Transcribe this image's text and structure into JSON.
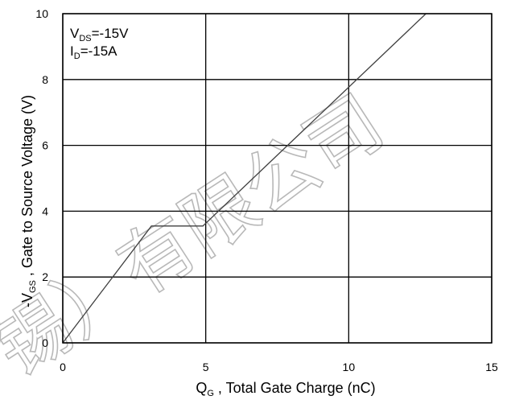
{
  "chart_data": {
    "type": "line",
    "title": "",
    "xlabel": {
      "main": "Q",
      "sub": "G",
      "rest": " , Total Gate Charge (nC)"
    },
    "ylabel": {
      "prefix": "-V",
      "sub": "GS",
      "rest": " , Gate to Source Voltage (V)"
    },
    "xlim": [
      0,
      15
    ],
    "ylim": [
      0,
      10
    ],
    "xticks": [
      "0",
      "5",
      "10",
      "15"
    ],
    "yticks": [
      "0",
      "2",
      "4",
      "6",
      "8",
      "10"
    ],
    "grid": true,
    "annotations": [
      {
        "main": "V",
        "sub": "DS",
        "rest": "=-15V"
      },
      {
        "main": "I",
        "sub": "D",
        "rest": "=-15A"
      }
    ],
    "series": [
      {
        "x": [
          0,
          3.1,
          4.9,
          12.7
        ],
        "y": [
          0,
          3.55,
          3.55,
          10
        ],
        "color": "#404040"
      }
    ]
  },
  "watermark": {
    "text": "锡）有限公司",
    "color": "#b8b8b8"
  }
}
